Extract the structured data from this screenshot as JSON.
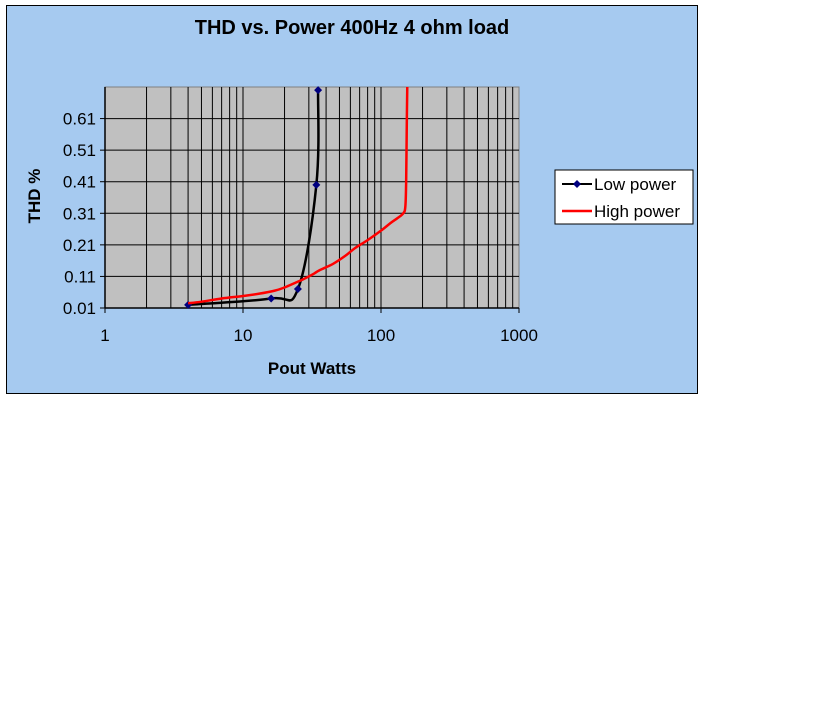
{
  "chart_data": {
    "type": "line",
    "title": "THD vs. Power 400Hz 4 ohm load",
    "xlabel": "Pout Watts",
    "ylabel": "THD %",
    "xscale": "log",
    "xlim": [
      1,
      1000
    ],
    "ylim": [
      0.01,
      0.71
    ],
    "x_ticks": [
      "1",
      "10",
      "100",
      "1000"
    ],
    "y_ticks": [
      "0.01",
      "0.11",
      "0.21",
      "0.31",
      "0.41",
      "0.51",
      "0.61"
    ],
    "grid": true,
    "legend_position": "right",
    "plot_background": "#c0c0c0",
    "chart_background": "#a6caf0",
    "series": [
      {
        "name": "Low power",
        "color": "#000000",
        "marker": "diamond",
        "marker_color": "#000080",
        "points": [
          [
            4,
            0.02
          ],
          [
            16,
            0.04
          ],
          [
            25,
            0.07
          ],
          [
            34,
            0.4
          ],
          [
            35,
            0.7
          ]
        ]
      },
      {
        "name": "High power",
        "color": "#ff0000",
        "marker": "none",
        "points": [
          [
            4,
            0.025
          ],
          [
            5,
            0.03
          ],
          [
            7,
            0.04
          ],
          [
            10,
            0.048
          ],
          [
            13,
            0.055
          ],
          [
            17,
            0.065
          ],
          [
            20,
            0.075
          ],
          [
            24,
            0.09
          ],
          [
            27,
            0.1
          ],
          [
            30,
            0.11
          ],
          [
            33,
            0.12
          ],
          [
            36,
            0.13
          ],
          [
            45,
            0.15
          ],
          [
            55,
            0.175
          ],
          [
            65,
            0.2
          ],
          [
            80,
            0.225
          ],
          [
            100,
            0.255
          ],
          [
            118,
            0.28
          ],
          [
            132,
            0.295
          ],
          [
            145,
            0.31
          ],
          [
            150,
            0.33
          ],
          [
            152,
            0.4
          ],
          [
            153,
            0.5
          ],
          [
            154,
            0.62
          ],
          [
            155,
            0.71
          ]
        ]
      }
    ]
  }
}
